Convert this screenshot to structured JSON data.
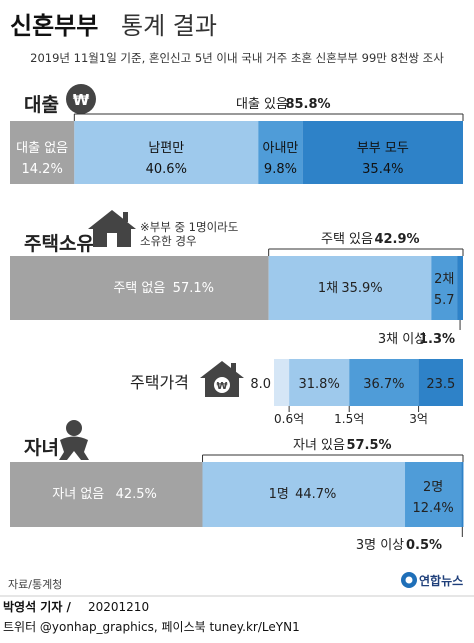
{
  "header": {
    "title_bold": "신혼부부",
    "title_rest": "통계 결과",
    "subtitle": "2019년 11월1일 기준, 혼인신고 5년 이내 국내 거주 초혼 신혼부부 99만 8천쌍 조사"
  },
  "chart_data": [
    {
      "type": "bar",
      "orientation": "horizontal-stacked",
      "title": "대출",
      "icon": "won-coin-icon",
      "total_label": "대출 있음",
      "total_value": "85.8%",
      "segments": [
        {
          "name": "대출 없음",
          "value": 14.2,
          "label": "14.2%",
          "color": "#a3a3a3"
        },
        {
          "name": "남편만",
          "value": 40.6,
          "label": "40.6%",
          "color": "#9ec9ec"
        },
        {
          "name": "아내만",
          "value": 9.8,
          "label": "9.8%",
          "color": "#4f9cd8"
        },
        {
          "name": "부부 모두",
          "value": 35.4,
          "label": "35.4%",
          "color": "#2e82c8"
        }
      ]
    },
    {
      "type": "bar",
      "orientation": "horizontal-stacked",
      "title": "주택소유",
      "icon": "house-icon",
      "note_line1": "※부부 중 1명이라도",
      "note_line2": "소유한 경우",
      "total_label": "주택 있음",
      "total_value": "42.9%",
      "segments": [
        {
          "name": "주택 없음",
          "value": 57.1,
          "label": "57.1%",
          "color": "#a3a3a3"
        },
        {
          "name": "1채",
          "value": 35.9,
          "label": "35.9%",
          "color": "#9ec9ec"
        },
        {
          "name": "2채",
          "value": 5.7,
          "label": "5.7",
          "color": "#4f9cd8"
        },
        {
          "name": "3채 이상",
          "value": 1.3,
          "label": "1.3%",
          "color": "#2e82c8"
        }
      ]
    },
    {
      "type": "bar",
      "orientation": "horizontal-stacked",
      "title": "주택가격",
      "icon": "house-won-icon",
      "segments": [
        {
          "value": 8.0,
          "label": "8.0",
          "color": "#d5e6f6"
        },
        {
          "value": 31.8,
          "label": "31.8%",
          "color": "#9ec9ec"
        },
        {
          "value": 36.7,
          "label": "36.7%",
          "color": "#4f9cd8"
        },
        {
          "value": 23.5,
          "label": "23.5",
          "color": "#2e82c8"
        }
      ],
      "boundaries": [
        "0.6억",
        "1.5억",
        "3억"
      ]
    },
    {
      "type": "bar",
      "orientation": "horizontal-stacked",
      "title": "자녀",
      "icon": "baby-icon",
      "total_label": "자녀 있음",
      "total_value": "57.5%",
      "segments": [
        {
          "name": "자녀 없음",
          "value": 42.5,
          "label": "42.5%",
          "color": "#a3a3a3"
        },
        {
          "name": "1명",
          "value": 44.7,
          "label": "44.7%",
          "color": "#9ec9ec"
        },
        {
          "name": "2명",
          "value": 12.4,
          "label": "12.4%",
          "color": "#4f9cd8"
        },
        {
          "name": "3명 이상",
          "value": 0.5,
          "label": "0.5%",
          "color": "#2e82c8"
        }
      ]
    }
  ],
  "footer": {
    "source": "자료/통계청",
    "byline_author": "박영석 기자 /",
    "byline_date": "20201210",
    "social": "트위터 @yonhap_graphics, 페이스북 tuney.kr/LeYN1",
    "logo_text": "연합뉴스"
  }
}
